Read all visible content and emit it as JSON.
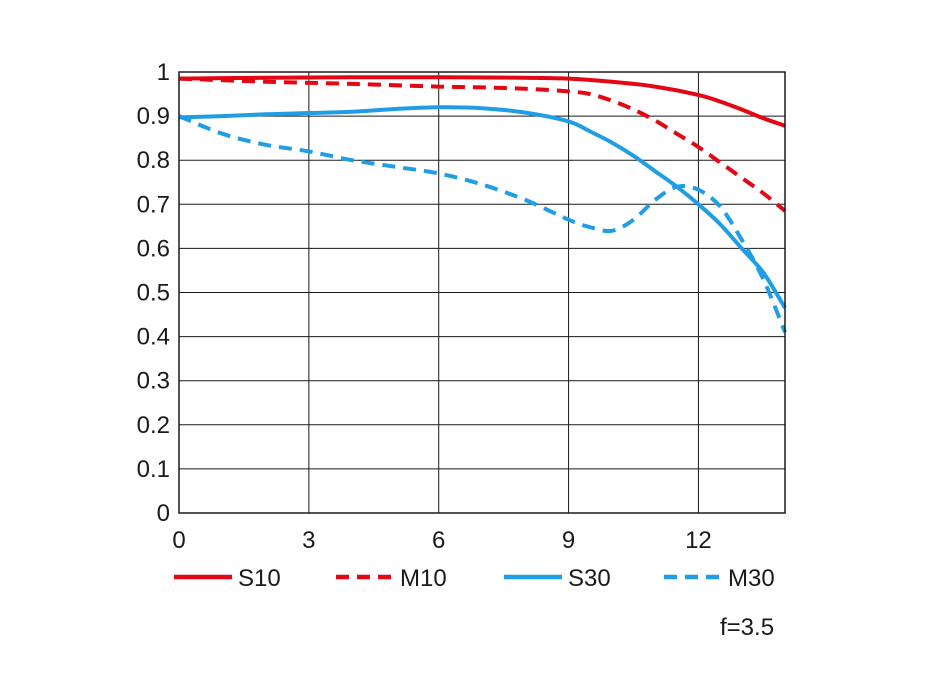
{
  "chart_data": {
    "type": "line",
    "title": "",
    "xlabel": "",
    "ylabel": "",
    "xlim": [
      0,
      14
    ],
    "ylim": [
      0,
      1
    ],
    "x_ticks": [
      0,
      3,
      6,
      9,
      12
    ],
    "y_ticks": [
      0,
      0.1,
      0.2,
      0.3,
      0.4,
      0.5,
      0.6,
      0.7,
      0.8,
      0.9,
      1
    ],
    "y_tick_labels": [
      "0",
      "0.1",
      "0.2",
      "0.3",
      "0.4",
      "0.5",
      "0.6",
      "0.7",
      "0.8",
      "0.9",
      "1"
    ],
    "grid": true,
    "legend_position": "bottom",
    "annotation": "f=3.5",
    "series": [
      {
        "name": "S10",
        "color": "#e30613",
        "style": "solid",
        "points": [
          [
            0,
            0.985
          ],
          [
            2,
            0.987
          ],
          [
            4,
            0.988
          ],
          [
            6,
            0.988
          ],
          [
            8,
            0.987
          ],
          [
            9,
            0.985
          ],
          [
            10,
            0.978
          ],
          [
            11,
            0.967
          ],
          [
            12,
            0.948
          ],
          [
            12.5,
            0.933
          ],
          [
            13,
            0.915
          ],
          [
            13.5,
            0.895
          ],
          [
            14,
            0.878
          ]
        ]
      },
      {
        "name": "M10",
        "color": "#e30613",
        "style": "dashed",
        "points": [
          [
            0,
            0.985
          ],
          [
            2,
            0.978
          ],
          [
            4,
            0.973
          ],
          [
            6,
            0.967
          ],
          [
            7,
            0.965
          ],
          [
            8,
            0.962
          ],
          [
            9,
            0.956
          ],
          [
            9.5,
            0.95
          ],
          [
            10,
            0.935
          ],
          [
            10.5,
            0.915
          ],
          [
            11,
            0.89
          ],
          [
            11.5,
            0.86
          ],
          [
            12,
            0.83
          ],
          [
            12.5,
            0.795
          ],
          [
            13,
            0.76
          ],
          [
            13.5,
            0.725
          ],
          [
            14,
            0.685
          ]
        ]
      },
      {
        "name": "S30",
        "color": "#1f9ee6",
        "style": "solid",
        "points": [
          [
            0,
            0.897
          ],
          [
            1,
            0.9
          ],
          [
            2,
            0.904
          ],
          [
            3,
            0.907
          ],
          [
            4,
            0.91
          ],
          [
            5,
            0.916
          ],
          [
            6,
            0.92
          ],
          [
            7,
            0.918
          ],
          [
            8,
            0.908
          ],
          [
            9,
            0.888
          ],
          [
            9.5,
            0.865
          ],
          [
            10,
            0.84
          ],
          [
            10.5,
            0.81
          ],
          [
            11,
            0.775
          ],
          [
            11.5,
            0.74
          ],
          [
            12,
            0.7
          ],
          [
            12.5,
            0.655
          ],
          [
            13,
            0.6
          ],
          [
            13.5,
            0.545
          ],
          [
            14,
            0.465
          ]
        ]
      },
      {
        "name": "M30",
        "color": "#1f9ee6",
        "style": "dashed",
        "points": [
          [
            0,
            0.9
          ],
          [
            1,
            0.86
          ],
          [
            2,
            0.835
          ],
          [
            3,
            0.82
          ],
          [
            4,
            0.8
          ],
          [
            5,
            0.785
          ],
          [
            6,
            0.77
          ],
          [
            7,
            0.745
          ],
          [
            8,
            0.71
          ],
          [
            9,
            0.665
          ],
          [
            9.5,
            0.648
          ],
          [
            10,
            0.64
          ],
          [
            10.5,
            0.665
          ],
          [
            11,
            0.71
          ],
          [
            11.5,
            0.74
          ],
          [
            12,
            0.733
          ],
          [
            12.5,
            0.695
          ],
          [
            13,
            0.62
          ],
          [
            13.5,
            0.53
          ],
          [
            14,
            0.41
          ]
        ]
      }
    ]
  }
}
